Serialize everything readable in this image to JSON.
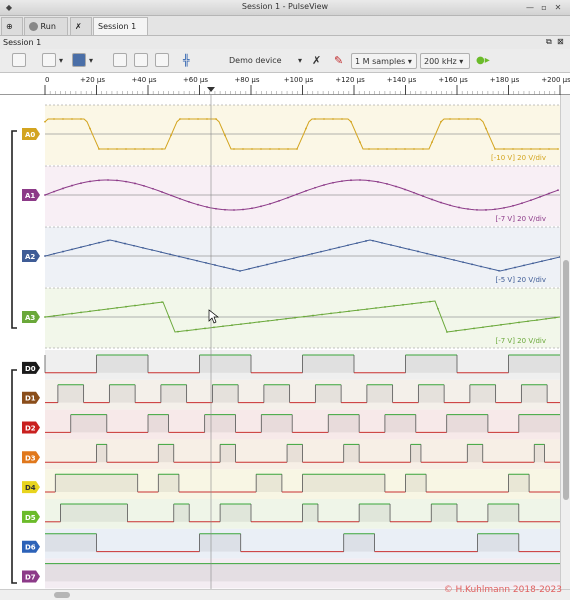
{
  "window": {
    "title": "Session 1 - PulseView"
  },
  "tabs": {
    "run_label": "Run",
    "session_label": "Session 1"
  },
  "session_bar": {
    "label": "Session 1"
  },
  "toolbar": {
    "device": "Demo device",
    "samples": "1 M samples",
    "rate": "200 kHz"
  },
  "ruler": {
    "ticks": [
      "0",
      "+20 µs",
      "+40 µs",
      "+60 µs",
      "+80 µs",
      "+100 µs",
      "+120 µs",
      "+140 µs",
      "+160 µs",
      "+180 µs",
      "+200 µs"
    ]
  },
  "analog": [
    {
      "name": "A0",
      "color": "#d3a41f",
      "bg": "#fbf7e6",
      "scale": "[-10 V] 20 V/div"
    },
    {
      "name": "A1",
      "color": "#8c3a88",
      "bg": "#f8eff5",
      "scale": "[-7 V] 20 V/div"
    },
    {
      "name": "A2",
      "color": "#3f5c96",
      "bg": "#eef1f6",
      "scale": "[-5 V] 20 V/div"
    },
    {
      "name": "A3",
      "color": "#6aa83a",
      "bg": "#f2f7ea",
      "scale": "[-7 V] 20 V/div"
    }
  ],
  "digital": [
    {
      "name": "D0",
      "color": "#1a1a1a",
      "bg": "#efefef"
    },
    {
      "name": "D1",
      "color": "#8a4d1a",
      "bg": "#f4f0ea"
    },
    {
      "name": "D2",
      "color": "#c9201f",
      "bg": "#f7e9e9"
    },
    {
      "name": "D3",
      "color": "#e0781c",
      "bg": "#f7efe6"
    },
    {
      "name": "D4",
      "color": "#e8d41e",
      "bg": "#f8f6e4"
    },
    {
      "name": "D5",
      "color": "#6bbb2a",
      "bg": "#eff5e8"
    },
    {
      "name": "D6",
      "color": "#2c62b8",
      "bg": "#eaeff6"
    },
    {
      "name": "D7",
      "color": "#8c3a88",
      "bg": "#f3ecf2"
    }
  ],
  "watermark": "© H.Kuhlmann 2018-2023"
}
